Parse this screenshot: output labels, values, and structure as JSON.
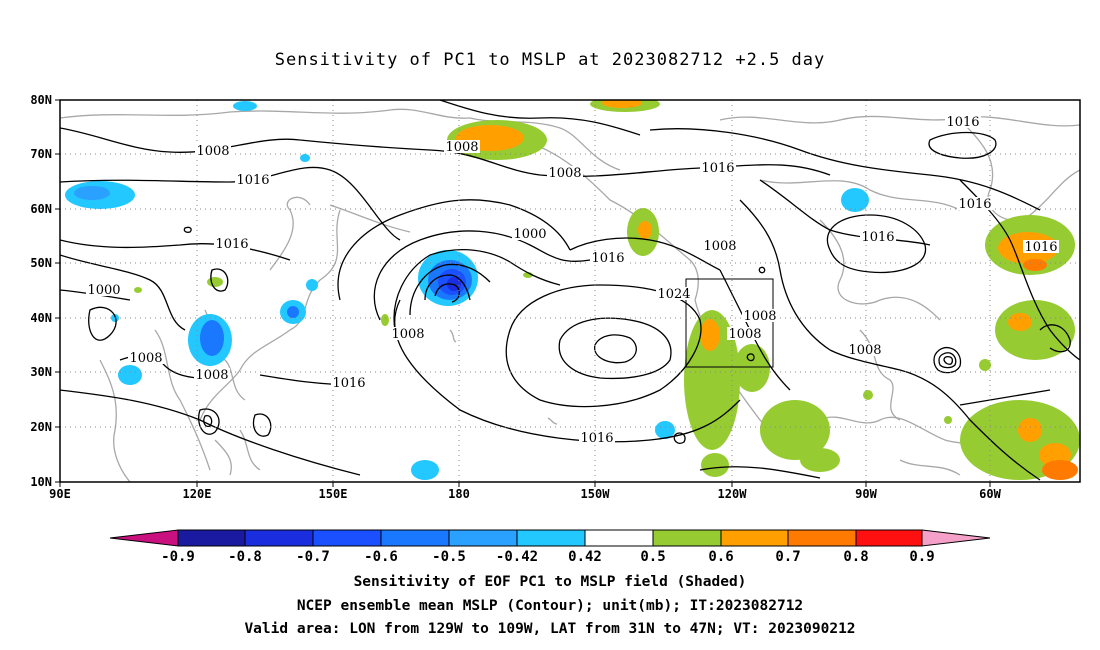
{
  "title": "Sensitivity of PC1 to MSLP at 2023082712 +2.5 day",
  "axes": {
    "x_ticks": [
      "90E",
      "120E",
      "150E",
      "180",
      "150W",
      "120W",
      "90W",
      "60W"
    ],
    "y_ticks": [
      "80N",
      "70N",
      "60N",
      "50N",
      "40N",
      "30N",
      "20N",
      "10N"
    ]
  },
  "colorbar": {
    "ticks": [
      "-0.9",
      "-0.8",
      "-0.7",
      "-0.6",
      "-0.5",
      "-0.42",
      "0.42",
      "0.5",
      "0.6",
      "0.7",
      "0.8",
      "0.9"
    ],
    "colors": [
      "#c8107e",
      "#1a1aa0",
      "#1a2ee0",
      "#1a50ff",
      "#1a78ff",
      "#2aa0ff",
      "#22c8ff",
      "#ffffff",
      "#96cc32",
      "#ffa000",
      "#ff7a00",
      "#ff4000",
      "#ff1010",
      "#f5a0c8"
    ]
  },
  "contour_labels": [
    {
      "text": "1008"
    },
    {
      "text": "1016"
    },
    {
      "text": "1008"
    },
    {
      "text": "1008"
    },
    {
      "text": "1016"
    },
    {
      "text": "1000"
    },
    {
      "text": "1016"
    },
    {
      "text": "1016"
    },
    {
      "text": "1016"
    },
    {
      "text": "1000"
    },
    {
      "text": "1008"
    },
    {
      "text": "1016"
    },
    {
      "text": "1016"
    },
    {
      "text": "1008"
    },
    {
      "text": "1016"
    },
    {
      "text": "1024"
    },
    {
      "text": "1008"
    },
    {
      "text": "1008"
    },
    {
      "text": "1008"
    },
    {
      "text": "1016"
    },
    {
      "text": "1016"
    },
    {
      "text": "1008"
    },
    {
      "text": "1008"
    }
  ],
  "captions": [
    "Sensitivity of EOF PC1 to MSLP field (Shaded)",
    "NCEP ensemble mean MSLP (Contour); unit(mb); IT:2023082712",
    "Valid area: LON from 129W to 109W, LAT from 31N to 47N; VT: 2023090212"
  ]
}
